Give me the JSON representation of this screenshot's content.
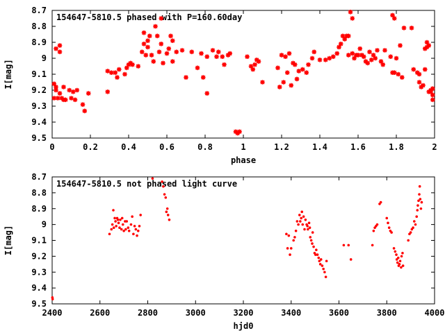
{
  "chart_data": [
    {
      "type": "scatter",
      "title": "154647-5810.5 phased with P=160.60day",
      "xlabel": "phase",
      "ylabel": "I[mag]",
      "xlim": [
        0,
        2
      ],
      "ylim": [
        8.7,
        9.5
      ],
      "y_inverted": true,
      "xticks": [
        "0",
        "0.2",
        "0.4",
        "0.6",
        "0.8",
        "1",
        "1.2",
        "1.4",
        "1.6",
        "1.8",
        "2"
      ],
      "yticks": [
        "8.7",
        "8.8",
        "8.9",
        "9",
        "9.1",
        "9.2",
        "9.3",
        "9.4",
        "9.5"
      ],
      "marker": "star",
      "color": "#ff0000",
      "grid": false,
      "points": [
        [
          0.01,
          9.16
        ],
        [
          0.02,
          9.18
        ],
        [
          0.01,
          9.25
        ],
        [
          0.03,
          9.25
        ],
        [
          0.02,
          9.2
        ],
        [
          0.04,
          9.22
        ],
        [
          0.05,
          9.25
        ],
        [
          0.06,
          9.26
        ],
        [
          0.07,
          9.26
        ],
        [
          0.06,
          9.18
        ],
        [
          0.09,
          9.2
        ],
        [
          0.1,
          9.25
        ],
        [
          0.11,
          9.21
        ],
        [
          0.12,
          9.26
        ],
        [
          0.13,
          9.2
        ],
        [
          0.16,
          9.29
        ],
        [
          0.17,
          9.33
        ],
        [
          0.19,
          9.22
        ],
        [
          0.02,
          8.94
        ],
        [
          0.04,
          8.96
        ],
        [
          0.04,
          8.92
        ],
        [
          0.29,
          9.21
        ],
        [
          0.29,
          9.08
        ],
        [
          0.31,
          9.09
        ],
        [
          0.33,
          9.09
        ],
        [
          0.34,
          9.12
        ],
        [
          0.35,
          9.07
        ],
        [
          0.38,
          9.1
        ],
        [
          0.39,
          9.06
        ],
        [
          0.4,
          9.04
        ],
        [
          0.41,
          9.03
        ],
        [
          0.42,
          9.04
        ],
        [
          0.45,
          9.05
        ],
        [
          0.47,
          8.96
        ],
        [
          0.48,
          8.91
        ],
        [
          0.48,
          8.84
        ],
        [
          0.49,
          8.98
        ],
        [
          0.5,
          8.93
        ],
        [
          0.5,
          8.89
        ],
        [
          0.51,
          8.86
        ],
        [
          0.52,
          8.98
        ],
        [
          0.53,
          9.02
        ],
        [
          0.54,
          8.8
        ],
        [
          0.55,
          8.86
        ],
        [
          0.56,
          8.96
        ],
        [
          0.57,
          8.75
        ],
        [
          0.57,
          8.91
        ],
        [
          0.58,
          9.03
        ],
        [
          0.6,
          8.97
        ],
        [
          0.61,
          8.94
        ],
        [
          0.62,
          8.86
        ],
        [
          0.63,
          9.02
        ],
        [
          0.63,
          8.89
        ],
        [
          0.65,
          8.96
        ],
        [
          0.68,
          8.95
        ],
        [
          0.7,
          9.12
        ],
        [
          0.73,
          8.96
        ],
        [
          0.76,
          9.06
        ],
        [
          0.78,
          8.97
        ],
        [
          0.79,
          9.12
        ],
        [
          0.81,
          9.22
        ],
        [
          0.81,
          8.99
        ],
        [
          0.84,
          8.95
        ],
        [
          0.86,
          8.99
        ],
        [
          0.87,
          8.96
        ],
        [
          0.89,
          8.99
        ],
        [
          0.9,
          9.04
        ],
        [
          0.92,
          8.98
        ],
        [
          0.93,
          8.97
        ],
        [
          0.96,
          9.46
        ],
        [
          0.97,
          9.47
        ],
        [
          0.98,
          9.46
        ],
        [
          1.02,
          8.99
        ],
        [
          1.04,
          9.05
        ],
        [
          1.05,
          9.07
        ],
        [
          1.06,
          9.04
        ],
        [
          1.07,
          9.01
        ],
        [
          1.08,
          9.02
        ],
        [
          1.1,
          9.15
        ],
        [
          1.18,
          9.06
        ],
        [
          1.19,
          9.18
        ],
        [
          1.2,
          8.98
        ],
        [
          1.21,
          9.15
        ],
        [
          1.22,
          8.99
        ],
        [
          1.23,
          9.09
        ],
        [
          1.24,
          8.97
        ],
        [
          1.25,
          9.17
        ],
        [
          1.26,
          9.03
        ],
        [
          1.27,
          9.04
        ],
        [
          1.28,
          9.13
        ],
        [
          1.29,
          9.08
        ],
        [
          1.31,
          9.07
        ],
        [
          1.33,
          9.09
        ],
        [
          1.34,
          9.04
        ],
        [
          1.36,
          9.0
        ],
        [
          1.37,
          8.96
        ],
        [
          1.4,
          9.01
        ],
        [
          1.43,
          9.01
        ],
        [
          1.45,
          9.0
        ],
        [
          1.47,
          8.99
        ],
        [
          1.49,
          8.97
        ],
        [
          1.5,
          8.93
        ],
        [
          1.51,
          8.91
        ],
        [
          1.52,
          8.86
        ],
        [
          1.53,
          8.88
        ],
        [
          1.54,
          8.86
        ],
        [
          1.55,
          8.86
        ],
        [
          1.55,
          8.98
        ],
        [
          1.56,
          8.71
        ],
        [
          1.57,
          8.75
        ],
        [
          1.57,
          8.97
        ],
        [
          1.58,
          9.0
        ],
        [
          1.59,
          8.98
        ],
        [
          1.6,
          8.98
        ],
        [
          1.61,
          8.94
        ],
        [
          1.62,
          8.98
        ],
        [
          1.63,
          8.99
        ],
        [
          1.64,
          9.02
        ],
        [
          1.65,
          9.03
        ],
        [
          1.66,
          8.96
        ],
        [
          1.67,
          9.01
        ],
        [
          1.68,
          8.98
        ],
        [
          1.69,
          9.0
        ],
        [
          1.7,
          8.95
        ],
        [
          1.72,
          9.02
        ],
        [
          1.73,
          9.04
        ],
        [
          1.74,
          8.95
        ],
        [
          1.77,
          8.99
        ],
        [
          1.78,
          8.73
        ],
        [
          1.79,
          8.75
        ],
        [
          1.78,
          9.09
        ],
        [
          1.79,
          9.09
        ],
        [
          1.8,
          9.0
        ],
        [
          1.81,
          9.1
        ],
        [
          1.82,
          8.92
        ],
        [
          1.83,
          9.12
        ],
        [
          1.84,
          8.81
        ],
        [
          1.88,
          8.81
        ],
        [
          1.89,
          9.07
        ],
        [
          1.91,
          9.09
        ],
        [
          1.92,
          9.1
        ],
        [
          1.92,
          9.15
        ],
        [
          1.93,
          9.18
        ],
        [
          1.94,
          9.17
        ],
        [
          1.95,
          9.07
        ],
        [
          1.95,
          8.94
        ],
        [
          1.96,
          8.93
        ],
        [
          1.96,
          8.9
        ],
        [
          1.97,
          9.21
        ],
        [
          1.97,
          8.92
        ],
        [
          1.98,
          9.21
        ],
        [
          1.98,
          9.2
        ],
        [
          1.99,
          9.19
        ],
        [
          1.99,
          9.23
        ],
        [
          1.99,
          9.26
        ]
      ]
    },
    {
      "type": "scatter",
      "title": "154647-5810.5 not phased light curve",
      "xlabel": "hjd0",
      "ylabel": "I[mag]",
      "xlim": [
        2400,
        4000
      ],
      "ylim": [
        8.7,
        9.5
      ],
      "y_inverted": true,
      "xticks": [
        "2400",
        "2600",
        "2800",
        "3000",
        "3200",
        "3400",
        "3600",
        "3800",
        "4000"
      ],
      "yticks": [
        "8.7",
        "8.8",
        "8.9",
        "9",
        "9.1",
        "9.2",
        "9.3",
        "9.4",
        "9.5"
      ],
      "marker": "dot",
      "color": "#ff0000",
      "grid": false,
      "points": [
        [
          2401,
          9.46
        ],
        [
          2402,
          9.47
        ],
        [
          2640,
          9.06
        ],
        [
          2648,
          9.03
        ],
        [
          2652,
          9.0
        ],
        [
          2656,
          8.91
        ],
        [
          2658,
          9.02
        ],
        [
          2662,
          8.96
        ],
        [
          2665,
          8.98
        ],
        [
          2668,
          9.01
        ],
        [
          2672,
          8.96
        ],
        [
          2675,
          8.97
        ],
        [
          2678,
          8.99
        ],
        [
          2682,
          9.02
        ],
        [
          2685,
          8.97
        ],
        [
          2690,
          9.03
        ],
        [
          2693,
          8.96
        ],
        [
          2696,
          9.0
        ],
        [
          2700,
          9.04
        ],
        [
          2705,
          8.98
        ],
        [
          2708,
          9.03
        ],
        [
          2712,
          8.98
        ],
        [
          2718,
          9.02
        ],
        [
          2722,
          9.04
        ],
        [
          2730,
          9.0
        ],
        [
          2735,
          8.95
        ],
        [
          2740,
          9.06
        ],
        [
          2745,
          9.01
        ],
        [
          2750,
          9.03
        ],
        [
          2755,
          9.07
        ],
        [
          2760,
          9.04
        ],
        [
          2765,
          9.01
        ],
        [
          2770,
          8.94
        ],
        [
          2820,
          8.71
        ],
        [
          2860,
          8.73
        ],
        [
          2865,
          8.76
        ],
        [
          2870,
          8.81
        ],
        [
          2875,
          8.83
        ],
        [
          2878,
          8.92
        ],
        [
          2882,
          8.9
        ],
        [
          2885,
          8.94
        ],
        [
          2890,
          8.97
        ],
        [
          3380,
          9.06
        ],
        [
          3385,
          9.15
        ],
        [
          3390,
          9.07
        ],
        [
          3395,
          9.19
        ],
        [
          3400,
          9.15
        ],
        [
          3410,
          9.1
        ],
        [
          3415,
          9.08
        ],
        [
          3420,
          9.04
        ],
        [
          3425,
          8.98
        ],
        [
          3430,
          9.0
        ],
        [
          3435,
          8.94
        ],
        [
          3438,
          8.98
        ],
        [
          3442,
          8.96
        ],
        [
          3445,
          8.92
        ],
        [
          3448,
          9.0
        ],
        [
          3452,
          8.95
        ],
        [
          3456,
          9.03
        ],
        [
          3460,
          8.97
        ],
        [
          3465,
          9.0
        ],
        [
          3468,
          9.01
        ],
        [
          3470,
          9.03
        ],
        [
          3475,
          8.99
        ],
        [
          3478,
          9.02
        ],
        [
          3480,
          9.08
        ],
        [
          3484,
          9.1
        ],
        [
          3488,
          9.12
        ],
        [
          3490,
          9.05
        ],
        [
          3494,
          9.14
        ],
        [
          3498,
          9.18
        ],
        [
          3502,
          9.19
        ],
        [
          3505,
          9.16
        ],
        [
          3510,
          9.19
        ],
        [
          3515,
          9.21
        ],
        [
          3518,
          9.23
        ],
        [
          3522,
          9.25
        ],
        [
          3525,
          9.22
        ],
        [
          3530,
          9.26
        ],
        [
          3535,
          9.28
        ],
        [
          3540,
          9.3
        ],
        [
          3545,
          9.33
        ],
        [
          3548,
          9.23
        ],
        [
          3620,
          9.13
        ],
        [
          3640,
          9.13
        ],
        [
          3650,
          9.22
        ],
        [
          3740,
          9.13
        ],
        [
          3745,
          9.04
        ],
        [
          3750,
          9.02
        ],
        [
          3755,
          9.01
        ],
        [
          3760,
          9.0
        ],
        [
          3770,
          8.87
        ],
        [
          3775,
          8.86
        ],
        [
          3800,
          8.96
        ],
        [
          3805,
          8.99
        ],
        [
          3810,
          9.02
        ],
        [
          3815,
          9.04
        ],
        [
          3820,
          9.05
        ],
        [
          3830,
          9.15
        ],
        [
          3835,
          9.17
        ],
        [
          3840,
          9.19
        ],
        [
          3842,
          9.22
        ],
        [
          3845,
          9.24
        ],
        [
          3848,
          9.21
        ],
        [
          3850,
          9.26
        ],
        [
          3853,
          9.25
        ],
        [
          3856,
          9.23
        ],
        [
          3860,
          9.27
        ],
        [
          3862,
          9.2
        ],
        [
          3866,
          9.18
        ],
        [
          3868,
          9.26
        ],
        [
          3890,
          9.1
        ],
        [
          3895,
          9.06
        ],
        [
          3900,
          9.05
        ],
        [
          3905,
          9.03
        ],
        [
          3910,
          9.02
        ],
        [
          3915,
          8.98
        ],
        [
          3920,
          9.0
        ],
        [
          3925,
          8.95
        ],
        [
          3928,
          8.91
        ],
        [
          3930,
          8.88
        ],
        [
          3933,
          8.85
        ],
        [
          3936,
          8.81
        ],
        [
          3938,
          8.76
        ],
        [
          3940,
          8.84
        ],
        [
          3943,
          8.9
        ],
        [
          3946,
          8.86
        ]
      ]
    }
  ]
}
